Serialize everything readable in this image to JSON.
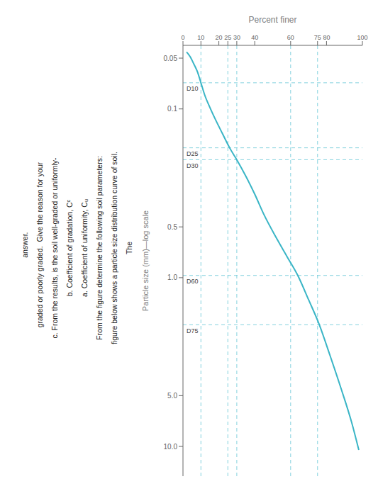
{
  "chart_data": {
    "type": "line",
    "xlabel": "Percent finer",
    "ylabel": "Particle size (mm)—log scale",
    "log": "y",
    "grid": false,
    "xlim": [
      0,
      100
    ],
    "xticks": [
      0,
      10,
      20,
      25,
      30,
      40,
      60,
      75,
      80,
      100
    ],
    "ylim": [
      15.0,
      0.042
    ],
    "yticks": [
      0.05,
      0.1,
      0.5,
      {
        "value": 1.0,
        "label": "1.0"
      },
      {
        "value": 5.0,
        "label": "5.0"
      },
      {
        "value": 10.0,
        "label": "10.0"
      }
    ],
    "x": [
      2,
      4,
      6,
      8,
      10,
      12,
      15,
      18,
      22,
      26,
      30,
      35,
      40,
      45,
      52,
      58,
      64,
      70,
      76,
      82,
      88,
      94,
      98
    ],
    "series": [
      {
        "color": "#3ab5c6",
        "values": [
          0.046,
          0.049,
          0.054,
          0.06,
          0.07,
          0.082,
          0.098,
          0.115,
          0.14,
          0.17,
          0.2,
          0.25,
          0.32,
          0.42,
          0.58,
          0.75,
          0.97,
          1.35,
          1.9,
          2.9,
          4.5,
          7.2,
          10.5
        ]
      }
    ],
    "reference_lines": {
      "color": "#6ecad8",
      "line_style": "dashed",
      "items": [
        {
          "label": "D75",
          "x": 75,
          "y": 1.9
        },
        {
          "label": "D60",
          "x": 60,
          "y": 0.97
        },
        {
          "label": "D30",
          "x": 30,
          "y": 0.2
        },
        {
          "label": "D25",
          "x": 25,
          "y": 0.17
        },
        {
          "label": "D10",
          "x": 10,
          "y": 0.07
        }
      ]
    },
    "annotations": [
      "The",
      "figure below shows a particle size distribution curve of soil.",
      "From the figure determine the following soil parameters:",
      "a. Coefficient of uniformity, Cᵤ",
      "b. Coefficient of gradation, Cᶜ",
      "c. From the results, is the soil well-graded or uniformly-",
      "   graded or poorly graded.  Give the reason for your",
      "   answer."
    ]
  }
}
